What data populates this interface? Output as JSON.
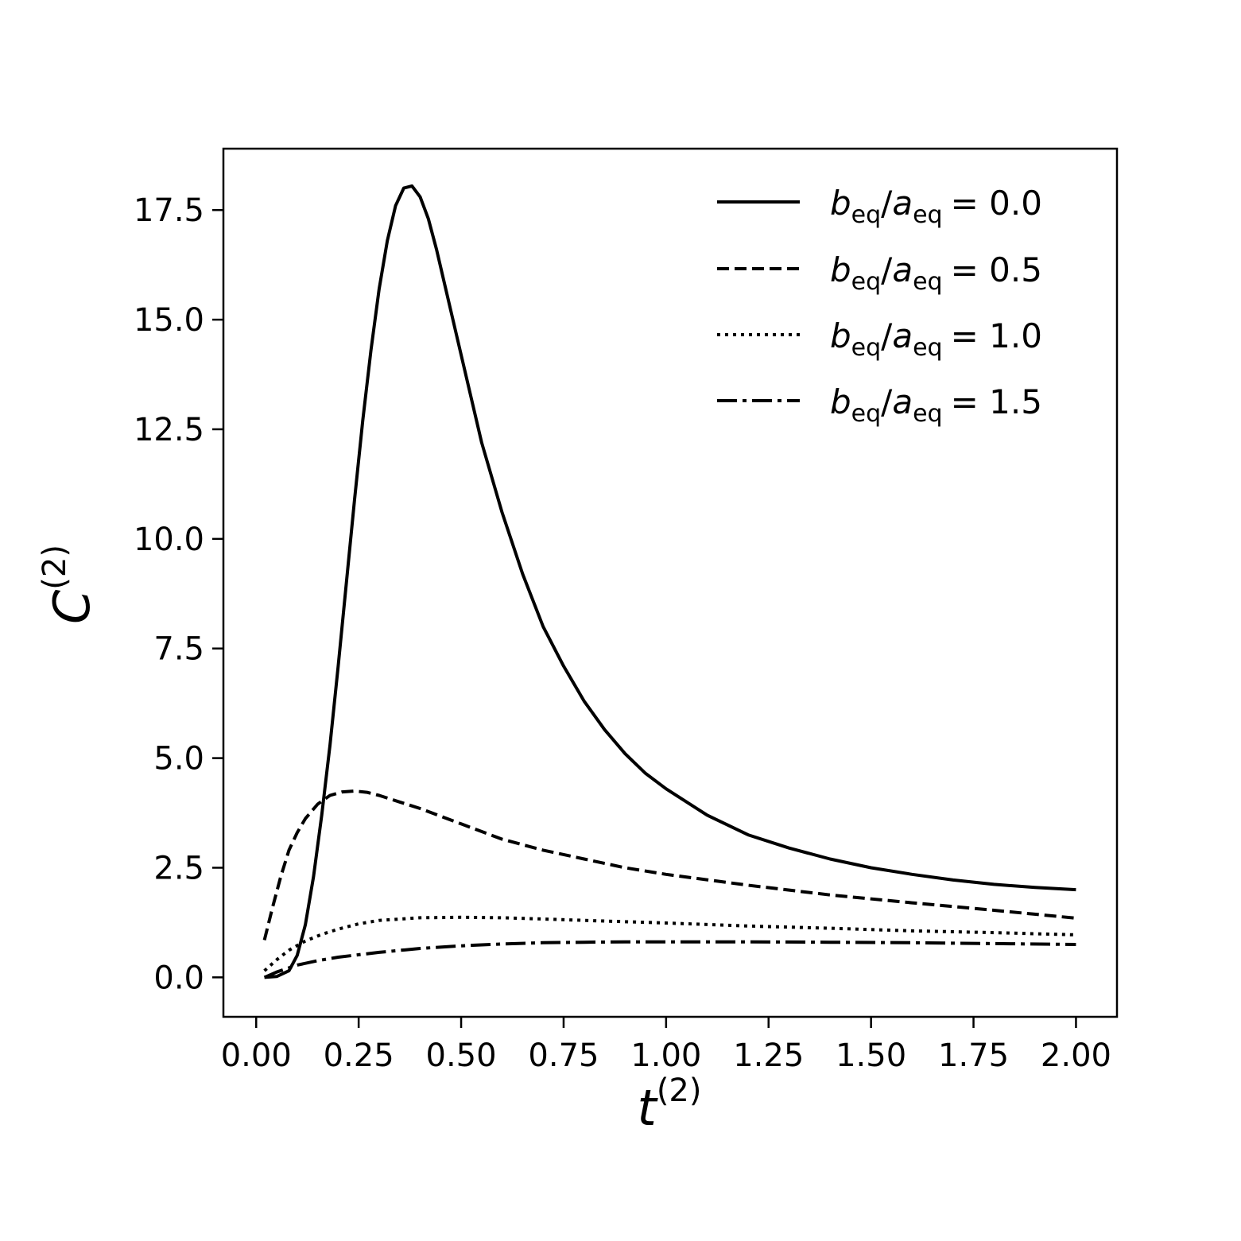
{
  "chart_data": {
    "type": "line",
    "xlabel": {
      "base": "t",
      "superscript": "(2)"
    },
    "ylabel": {
      "base": "C",
      "superscript": "(2)"
    },
    "xlim": [
      -0.08,
      2.1
    ],
    "ylim": [
      -0.9,
      18.9
    ],
    "xticks": [
      "0.00",
      "0.25",
      "0.50",
      "0.75",
      "1.00",
      "1.25",
      "1.50",
      "1.75",
      "2.00"
    ],
    "yticks": [
      "0.0",
      "2.5",
      "5.0",
      "7.5",
      "10.0",
      "12.5",
      "15.0",
      "17.5"
    ],
    "grid": false,
    "legend": {
      "placement": "top-right",
      "entries": [
        {
          "b": "b",
          "b_sub": "eq",
          "slash": "/",
          "a": "a",
          "a_sub": "eq",
          "equals": "= 0.0"
        },
        {
          "b": "b",
          "b_sub": "eq",
          "slash": "/",
          "a": "a",
          "a_sub": "eq",
          "equals": "= 0.5"
        },
        {
          "b": "b",
          "b_sub": "eq",
          "slash": "/",
          "a": "a",
          "a_sub": "eq",
          "equals": "= 1.0"
        },
        {
          "b": "b",
          "b_sub": "eq",
          "slash": "/",
          "a": "a",
          "a_sub": "eq",
          "equals": "= 1.5"
        }
      ]
    },
    "series": [
      {
        "style": "solid",
        "x": [
          0.02,
          0.05,
          0.08,
          0.1,
          0.12,
          0.14,
          0.16,
          0.18,
          0.2,
          0.22,
          0.24,
          0.26,
          0.28,
          0.3,
          0.32,
          0.34,
          0.36,
          0.38,
          0.4,
          0.42,
          0.44,
          0.46,
          0.48,
          0.5,
          0.55,
          0.6,
          0.65,
          0.7,
          0.75,
          0.8,
          0.85,
          0.9,
          0.95,
          1.0,
          1.1,
          1.2,
          1.3,
          1.4,
          1.5,
          1.6,
          1.7,
          1.8,
          1.9,
          2.0
        ],
        "y": [
          0.0,
          0.02,
          0.15,
          0.5,
          1.2,
          2.3,
          3.7,
          5.3,
          7.1,
          9.0,
          10.9,
          12.7,
          14.3,
          15.7,
          16.8,
          17.6,
          18.0,
          18.05,
          17.8,
          17.3,
          16.6,
          15.8,
          15.0,
          14.2,
          12.2,
          10.6,
          9.2,
          8.0,
          7.1,
          6.3,
          5.65,
          5.1,
          4.65,
          4.3,
          3.7,
          3.25,
          2.95,
          2.7,
          2.5,
          2.35,
          2.22,
          2.12,
          2.05,
          2.0
        ]
      },
      {
        "style": "dashed",
        "x": [
          0.02,
          0.04,
          0.06,
          0.08,
          0.1,
          0.12,
          0.15,
          0.18,
          0.21,
          0.24,
          0.27,
          0.3,
          0.35,
          0.4,
          0.5,
          0.6,
          0.7,
          0.8,
          0.9,
          1.0,
          1.2,
          1.4,
          1.6,
          1.8,
          2.0
        ],
        "y": [
          0.85,
          1.6,
          2.3,
          2.9,
          3.3,
          3.62,
          3.95,
          4.15,
          4.23,
          4.25,
          4.22,
          4.15,
          4.0,
          3.85,
          3.5,
          3.15,
          2.9,
          2.7,
          2.5,
          2.35,
          2.1,
          1.88,
          1.7,
          1.53,
          1.35
        ]
      },
      {
        "style": "dotted",
        "x": [
          0.02,
          0.05,
          0.08,
          0.12,
          0.16,
          0.2,
          0.25,
          0.3,
          0.4,
          0.5,
          0.6,
          0.7,
          0.8,
          1.0,
          1.2,
          1.4,
          1.6,
          1.8,
          2.0
        ],
        "y": [
          0.15,
          0.4,
          0.62,
          0.83,
          0.98,
          1.1,
          1.22,
          1.3,
          1.36,
          1.37,
          1.36,
          1.33,
          1.3,
          1.24,
          1.17,
          1.12,
          1.06,
          1.02,
          0.97
        ]
      },
      {
        "style": "dashdot",
        "x": [
          0.02,
          0.05,
          0.1,
          0.15,
          0.2,
          0.3,
          0.4,
          0.5,
          0.6,
          0.7,
          0.8,
          0.9,
          1.0,
          1.2,
          1.4,
          1.6,
          1.8,
          2.0
        ],
        "y": [
          0.0,
          0.12,
          0.28,
          0.38,
          0.46,
          0.57,
          0.66,
          0.72,
          0.76,
          0.79,
          0.8,
          0.81,
          0.81,
          0.81,
          0.8,
          0.79,
          0.77,
          0.75
        ]
      }
    ]
  }
}
